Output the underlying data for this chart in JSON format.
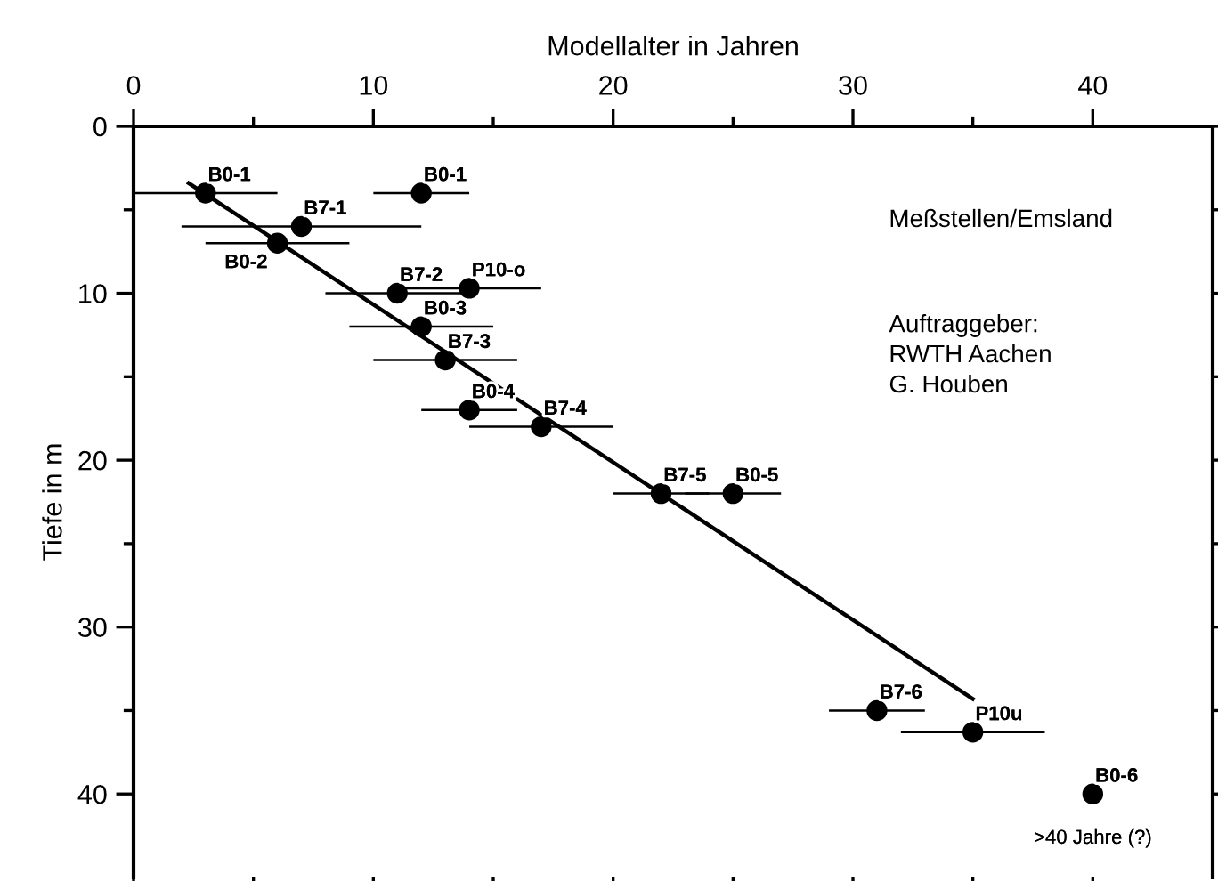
{
  "chart_data": {
    "type": "scatter",
    "xlabel": "Modellalter in Jahren",
    "ylabel": "Tiefe in m",
    "xlim": [
      0,
      45
    ],
    "ylim": [
      45,
      0
    ],
    "xticks": [
      0,
      {
        "value": 5,
        "label": null
      },
      10,
      {
        "value": 15,
        "label": null
      },
      20,
      {
        "value": 25,
        "label": null
      },
      30,
      {
        "value": 35,
        "label": null
      },
      40
    ],
    "yticks": [
      0,
      {
        "value": 5,
        "label": null
      },
      10,
      {
        "value": 15,
        "label": null
      },
      20,
      {
        "value": 25,
        "label": null
      },
      30,
      {
        "value": 35,
        "label": null
      },
      40
    ],
    "grid": false,
    "legend": false,
    "marker": "circle",
    "series": [
      {
        "color": "#000000",
        "x": [
          3,
          12,
          7,
          6,
          11,
          14,
          12,
          13,
          14,
          17,
          22,
          25,
          31,
          35,
          40
        ],
        "values": [
          4,
          4,
          6,
          7,
          10,
          9.7,
          12,
          14,
          17,
          18,
          22,
          22,
          35,
          36.3,
          40
        ],
        "xerrors": [
          3,
          2,
          5,
          3,
          3,
          3,
          3,
          3,
          2,
          3,
          2,
          2,
          2,
          3,
          null
        ]
      },
      {
        "type": "line",
        "color": "#000000",
        "x": [
          2.3,
          35
        ],
        "values": [
          3.4,
          34.3
        ],
        "marker": "none",
        "line_style": "solid"
      }
    ],
    "annotations": [
      {
        "text": "B0-1",
        "x": 3,
        "y": 4
      },
      {
        "text": "B0-1",
        "x": 12,
        "y": 4
      },
      {
        "text": "B7-1",
        "x": 7,
        "y": 6
      },
      {
        "text": "B0-2",
        "x": 6,
        "y": 7
      },
      {
        "text": "B7-2",
        "x": 11,
        "y": 10
      },
      {
        "text": "P10-o",
        "x": 14,
        "y": 9.7
      },
      {
        "text": "B0-3",
        "x": 12,
        "y": 12
      },
      {
        "text": "B7-3",
        "x": 13,
        "y": 14
      },
      {
        "text": "B0-4",
        "x": 14,
        "y": 17
      },
      {
        "text": "B7-4",
        "x": 17,
        "y": 18
      },
      {
        "text": "B7-5",
        "x": 22,
        "y": 22
      },
      {
        "text": "B0-5",
        "x": 25,
        "y": 22
      },
      {
        "text": "B7-6",
        "x": 31,
        "y": 35
      },
      {
        "text": "P10u",
        "x": 35,
        "y": 36.3
      },
      {
        "text": "B0-6",
        "x": 40,
        "y": 40
      },
      {
        "text": ">40 Jahre (?)",
        "x": 40,
        "y": 40
      },
      "Meßstellen/Emsland",
      "Auftraggeber:\nRWTH Aachen\nG. Houben"
    ]
  }
}
